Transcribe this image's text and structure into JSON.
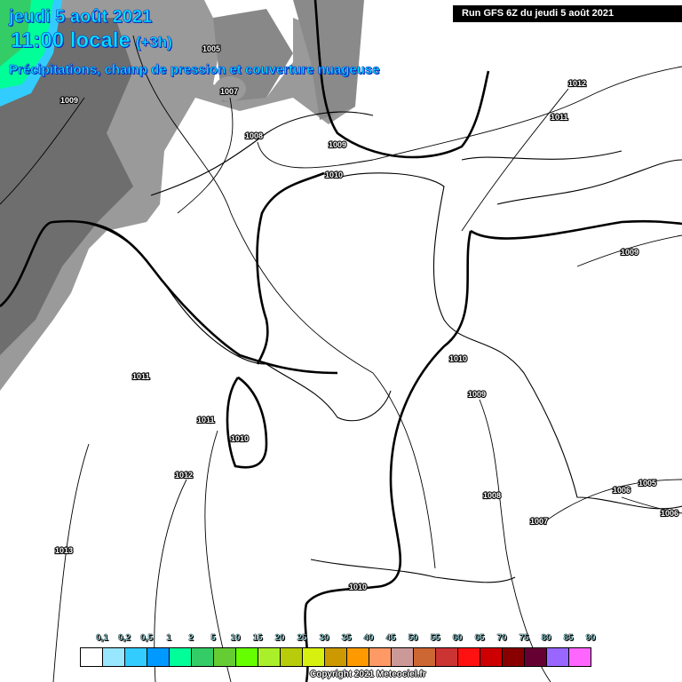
{
  "header": {
    "date": "jeudi 5 août 2021",
    "time": "11:00 locale",
    "offset": "(+3h)",
    "subtitle": "Précipitations, champ de pression et couverture nuageuse"
  },
  "run_banner": "Run GFS 6Z du jeudi 5 août 2021",
  "pressure_labels": [
    "1005",
    "1009",
    "1007",
    "1008",
    "1009",
    "1010",
    "1012",
    "1011",
    "1009",
    "1010",
    "1009",
    "1011",
    "1011",
    "1010",
    "1012",
    "1013",
    "1008",
    "1007",
    "1006",
    "1005",
    "1006",
    "1010"
  ],
  "legend": {
    "labels": [
      "0,1",
      "0,2",
      "0,5",
      "1",
      "2",
      "5",
      "10",
      "15",
      "20",
      "25",
      "30",
      "35",
      "40",
      "45",
      "50",
      "55",
      "60",
      "65",
      "70",
      "75",
      "80",
      "85",
      "90"
    ],
    "colors": [
      "#ffffff",
      "#99e6ff",
      "#33ccff",
      "#0099ff",
      "#00ff99",
      "#33cc66",
      "#66cc33",
      "#66ff00",
      "#aaf02a",
      "#b8cc0a",
      "#d8f010",
      "#cc9900",
      "#ff9900",
      "#ff9966",
      "#cc9999",
      "#cc6633",
      "#cc3333",
      "#ff1111",
      "#cc0000",
      "#880000",
      "#660033",
      "#9966ff",
      "#ff66ff"
    ]
  },
  "copyright": "Copyright 2021 Meteociel.fr"
}
